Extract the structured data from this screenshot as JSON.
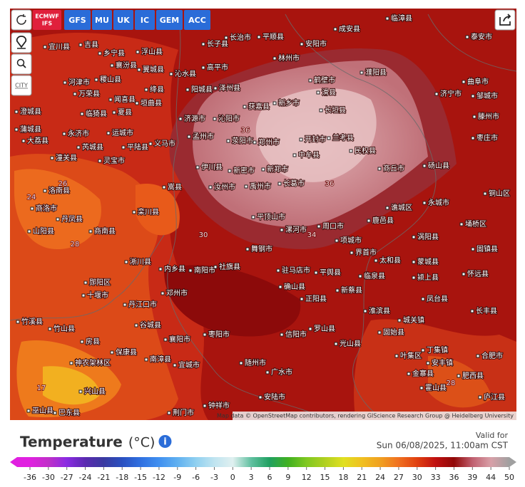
{
  "toolbar": {
    "active_model": {
      "line1": "ECMWF",
      "line2": "IFS"
    },
    "models": [
      "GFS",
      "MU",
      "UK",
      "IC",
      "GEM",
      "ACC"
    ],
    "city_button": "CITY"
  },
  "map": {
    "cities": [
      "长子县",
      "长治市",
      "平顺县",
      "林州市",
      "安阳市",
      "成安县",
      "临漳县",
      "濮阳县",
      "泰安市",
      "曲阜市",
      "济宁市",
      "邹城市",
      "滕州市",
      "枣庄市",
      "宜川县",
      "吉县",
      "乡宁县",
      "襄汾县",
      "浮山县",
      "翼城县",
      "沁水县",
      "高平市",
      "阳城县",
      "泽州县",
      "河津市",
      "稷山县",
      "万荣县",
      "闻喜县",
      "绛县",
      "垣曲县",
      "临猗县",
      "夏县",
      "澄城县",
      "蒲城县",
      "大荔县",
      "永济市",
      "运城市",
      "芮城县",
      "平陆县",
      "义马市",
      "潼关县",
      "灵宝市",
      "济源市",
      "沁阳市",
      "获嘉县",
      "新乡市",
      "滑县",
      "鹤壁市",
      "长垣县",
      "孟州市",
      "荥阳市",
      "郑州市",
      "开封市",
      "兰考县",
      "中牟县",
      "民权县",
      "商丘市",
      "砀山县",
      "伊川县",
      "新密市",
      "新郑市",
      "嵩县",
      "汝州市",
      "禹州市",
      "长葛市",
      "栾川县",
      "平顶山市",
      "漯河市",
      "周口市",
      "鹿邑县",
      "谯城区",
      "永城市",
      "铜山区",
      "项城市",
      "界首市",
      "涡阳县",
      "埇桥区",
      "太和县",
      "蒙城县",
      "固镇县",
      "舞钢市",
      "洛南县",
      "商洛市",
      "丹凤县",
      "山阳县",
      "商南县",
      "淅川县",
      "内乡县",
      "南阳市",
      "社旗县",
      "驻马店市",
      "平舆县",
      "临泉县",
      "颍上县",
      "怀远县",
      "郧阳区",
      "邓州市",
      "确山县",
      "新蔡县",
      "凤台县",
      "十堰市",
      "丹江口市",
      "正阳县",
      "淮滨县",
      "长丰县",
      "竹溪县",
      "竹山县",
      "谷城县",
      "罗山县",
      "城关镇",
      "固始县",
      "襄阳市",
      "枣阳市",
      "信阳市",
      "房县",
      "光山县",
      "丁集镇",
      "合肥市",
      "保康县",
      "南漳县",
      "叶集区",
      "安丰镇",
      "神农架林区",
      "随州市",
      "宜城市",
      "广水市",
      "金寨县",
      "肥西县",
      "兴山县",
      "霍山县",
      "安陆市",
      "庐江县",
      "钟祥市",
      "巫山县",
      "巴东县",
      "荆门市"
    ],
    "contour_labels": [
      17,
      24,
      26,
      28,
      30,
      36,
      36,
      34,
      28
    ],
    "attribution": "Map data © OpenStreetMap contributors, rendering GIScience Research Group @ Heidelberg University"
  },
  "legend": {
    "title": "Temperature",
    "unit": "(°C)",
    "ticks": [
      -36,
      -30,
      -27,
      -24,
      -21,
      -18,
      -15,
      -12,
      -9,
      -6,
      -3,
      0,
      3,
      6,
      9,
      12,
      15,
      18,
      21,
      24,
      27,
      30,
      33,
      36,
      39,
      44,
      50
    ],
    "colors": [
      "#e020e0",
      "#c030c8",
      "#8a2be2",
      "#5a2ab0",
      "#3a3aa0",
      "#2a50c0",
      "#3070e0",
      "#4090f0",
      "#60b0f0",
      "#90d0f0",
      "#c0e4f0",
      "#e0f0f0",
      "#60c0a0",
      "#20a060",
      "#40b020",
      "#80c820",
      "#b0d020",
      "#e0e020",
      "#f0c020",
      "#f0a020",
      "#f07020",
      "#e04010",
      "#c01010",
      "#900808",
      "#c06070",
      "#d8a0a8",
      "#a0a0a0"
    ]
  },
  "valid": {
    "label": "Valid for",
    "time": "Sun 06/08/2025, 11:00am CST"
  }
}
